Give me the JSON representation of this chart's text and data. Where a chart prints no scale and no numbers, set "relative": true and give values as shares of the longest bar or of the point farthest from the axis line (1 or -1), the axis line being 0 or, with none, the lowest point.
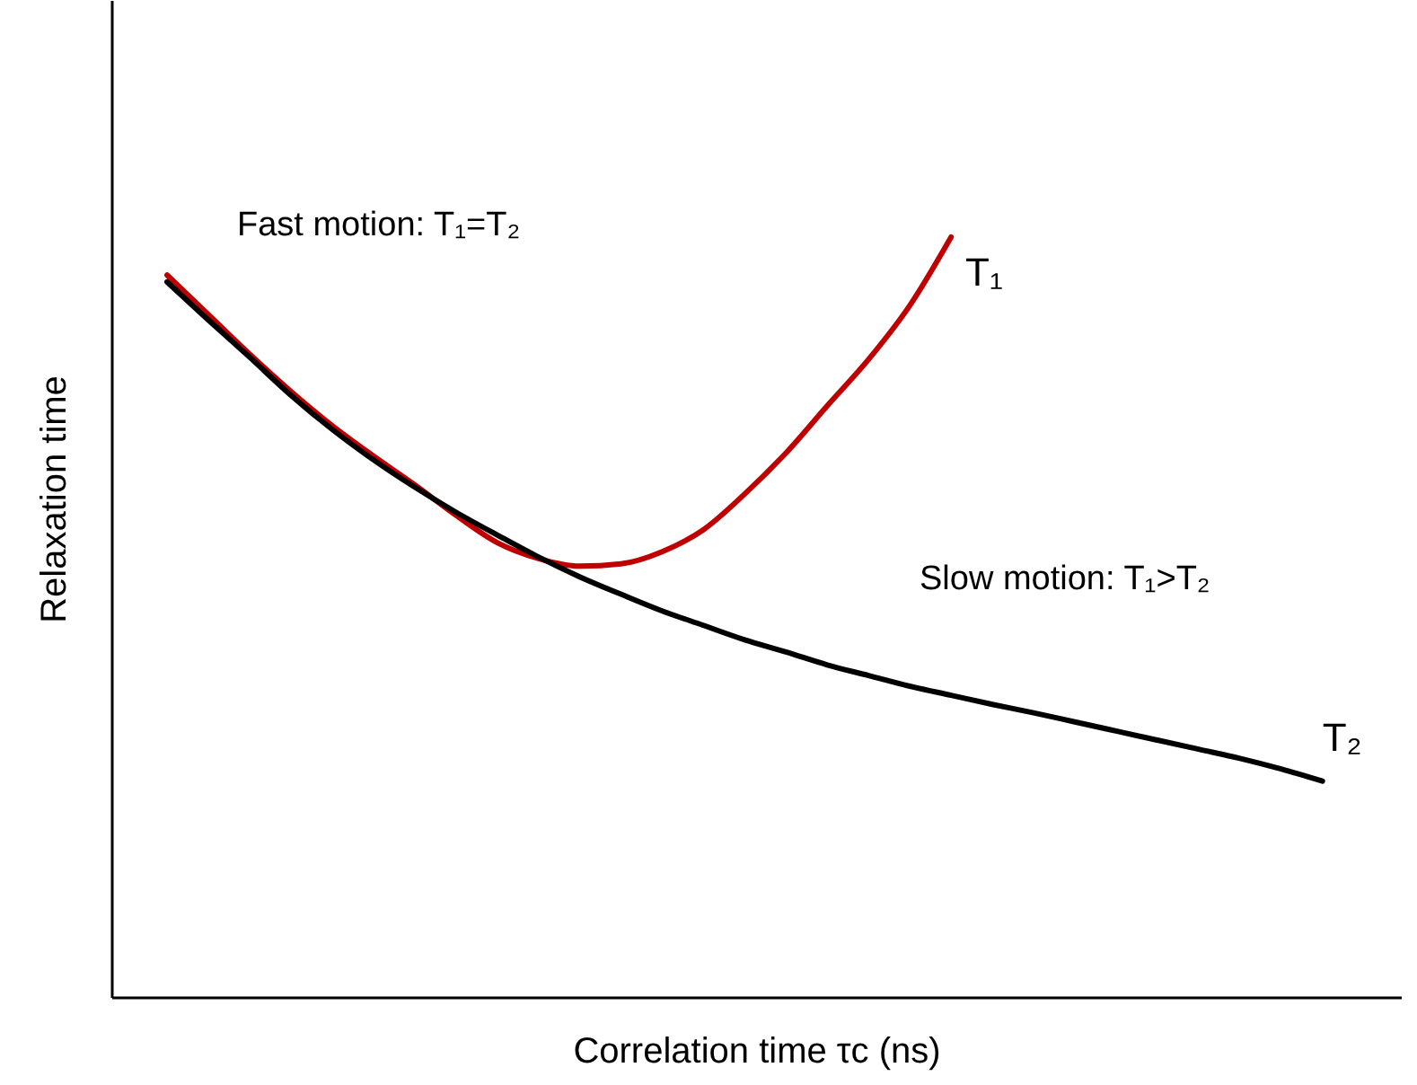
{
  "chart_data": {
    "type": "line",
    "relative": true,
    "xlabel": "Correlation time τc (ns)",
    "ylabel": "Relaxation time",
    "categories": [
      null,
      null,
      null,
      null,
      null,
      null,
      null,
      null,
      null,
      null,
      null,
      null,
      null,
      null,
      null,
      null,
      null,
      null,
      null,
      null,
      null,
      null,
      null,
      null,
      null,
      null,
      null,
      null,
      null
    ],
    "series": [
      {
        "name": "T₁",
        "color": "#c00000",
        "values": [
          0.95,
          0.898,
          0.846,
          0.797,
          0.752,
          0.712,
          0.674,
          0.634,
          0.598,
          0.577,
          0.567,
          0.57,
          0.586,
          0.615,
          0.662,
          0.716,
          0.778,
          0.839,
          0.91,
          1.0,
          null,
          null,
          null,
          null,
          null,
          null,
          null,
          null,
          null
        ]
      },
      {
        "name": "T₂",
        "color": "#000000",
        "values": [
          0.941,
          0.891,
          0.842,
          0.792,
          0.747,
          0.707,
          0.671,
          0.638,
          0.608,
          0.579,
          0.553,
          0.53,
          0.508,
          0.489,
          0.47,
          0.454,
          0.437,
          0.423,
          0.409,
          0.397,
          0.385,
          0.374,
          0.362,
          0.35,
          0.338,
          0.326,
          0.314,
          0.3,
          0.284
        ]
      }
    ],
    "annotations": [
      "Fast motion: T₁=T₂",
      "Slow motion: T₁>T₂"
    ],
    "marker": "none",
    "line_style": "solid"
  }
}
